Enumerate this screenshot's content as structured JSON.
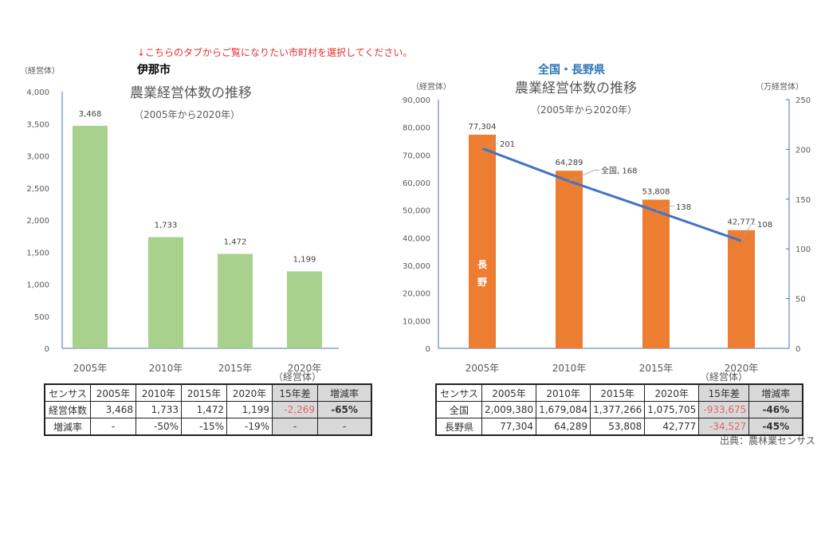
{
  "notice": "↓こちらのタブからご覧になりたい市町村を選択してください。",
  "source": "出典：農林業センサス",
  "colors": {
    "ina_bar": "#a9d18e",
    "nagano_bar": "#ed7d31",
    "national_line": "#4472c4",
    "notice": "#e03030",
    "right_title": "#2e75b6"
  },
  "chart_data": [
    {
      "type": "bar",
      "region": "伊那市",
      "title": "農業経営体数の推移",
      "subtitle": "（2005年から2020年）",
      "ylabel": "（経営体）",
      "xlabel": "（経営体）",
      "categories": [
        "2005年",
        "2010年",
        "2015年",
        "2020年"
      ],
      "values": [
        3468,
        1733,
        1472,
        1199
      ],
      "data_labels": [
        "3,468",
        "1,733",
        "1,472",
        "1,199"
      ],
      "ylim": [
        0,
        4000
      ],
      "yticks": [
        "0",
        "500",
        "1,000",
        "1,500",
        "2,000",
        "2,500",
        "3,000",
        "3,500",
        "4,000"
      ],
      "grid": false
    },
    {
      "type": "bar+line",
      "region": "全国・長野県",
      "title": "農業経営体数の推移",
      "subtitle": "（2005年から2020年）",
      "ylabel_left": "（経営体）",
      "ylabel_right": "（万経営体）",
      "xlabel": "（経営体）",
      "categories": [
        "2005年",
        "2010年",
        "2015年",
        "2020年"
      ],
      "series": [
        {
          "name": "長野",
          "type": "bar",
          "axis": "left",
          "values": [
            77304,
            64289,
            53808,
            42777
          ],
          "data_labels": [
            "77,304",
            "64,289",
            "53,808",
            "42,777"
          ]
        },
        {
          "name": "全国",
          "type": "line",
          "axis": "right",
          "values": [
            201,
            168,
            138,
            108
          ],
          "data_labels": [
            "201",
            "全国, 168",
            "138",
            "108"
          ]
        }
      ],
      "ylim_left": [
        0,
        90000
      ],
      "yticks_left": [
        "0",
        "10,000",
        "20,000",
        "30,000",
        "40,000",
        "50,000",
        "60,000",
        "70,000",
        "80,000",
        "90,000"
      ],
      "ylim_right": [
        0,
        250
      ],
      "yticks_right": [
        "0",
        "50",
        "100",
        "150",
        "200",
        "250"
      ],
      "grid": false
    }
  ],
  "ina_table": {
    "header": [
      "センサス",
      "2005年",
      "2010年",
      "2015年",
      "2020年",
      "15年差",
      "増減率"
    ],
    "rows": [
      [
        "経営体数",
        "3,468",
        "1,733",
        "1,472",
        "1,199",
        "-2,269",
        "-65%"
      ],
      [
        "増減率",
        "-",
        "-50%",
        "-15%",
        "-19%",
        "-",
        "-"
      ]
    ]
  },
  "national_table": {
    "header": [
      "センサス",
      "2005年",
      "2010年",
      "2015年",
      "2020年",
      "15年差",
      "増減率"
    ],
    "rows": [
      [
        "全国",
        "2,009,380",
        "1,679,084",
        "1,377,266",
        "1,075,705",
        "-933,675",
        "-46%"
      ],
      [
        "長野県",
        "77,304",
        "64,289",
        "53,808",
        "42,777",
        "-34,527",
        "-45%"
      ]
    ]
  }
}
